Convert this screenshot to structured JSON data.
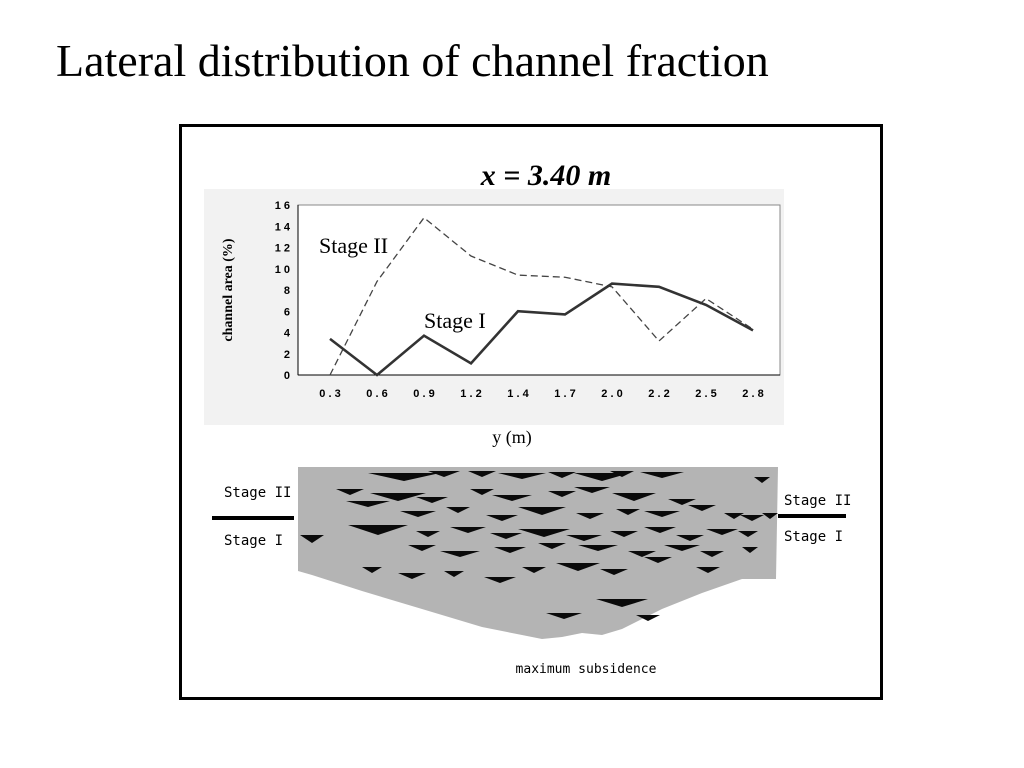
{
  "slide": {
    "title": "Lateral distribution of channel fraction"
  },
  "chart_data": {
    "type": "line",
    "title": "x = 3.40 m",
    "xlabel": "y (m)",
    "ylabel": "channel area (%)",
    "categories": [
      "0.3",
      "0.6",
      "0.9",
      "1.2",
      "1.4",
      "1.7",
      "2.0",
      "2.2",
      "2.5",
      "2.8"
    ],
    "yticks": [
      "0",
      "2",
      "4",
      "6",
      "8",
      "10",
      "12",
      "14",
      "16"
    ],
    "ylim": [
      0,
      16
    ],
    "grid": false,
    "series": [
      {
        "name": "Stage II",
        "style": "dashed",
        "color": "#444444",
        "values": [
          0,
          8.8,
          14.8,
          11.2,
          9.4,
          9.2,
          8.3,
          3.2,
          7.2,
          4.3
        ]
      },
      {
        "name": "Stage I",
        "style": "solid",
        "color": "#333333",
        "values": [
          3.4,
          0,
          3.7,
          1.1,
          6.0,
          5.7,
          8.6,
          8.3,
          6.6,
          4.2
        ]
      }
    ]
  },
  "cross_section": {
    "left_upper_label": "Stage II",
    "left_lower_label": "Stage I",
    "right_upper_label": "Stage II",
    "right_lower_label": "Stage I",
    "bottom_caption": "maximum subsidence"
  },
  "colors": {
    "plot_panel": "#f2f2f2",
    "section_fill": "#b4b4b4",
    "channel_fill": "#0a0a0a"
  }
}
